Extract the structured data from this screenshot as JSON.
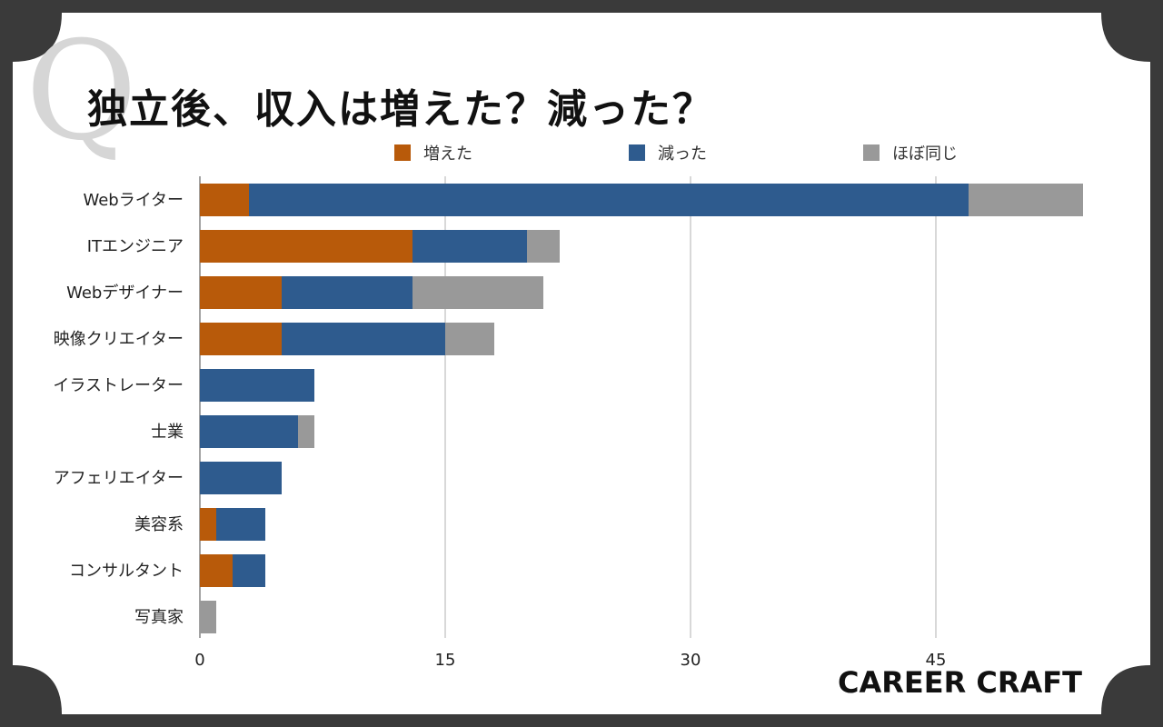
{
  "chart_data": {
    "type": "bar",
    "orientation": "horizontal",
    "stacked": true,
    "title": "独立後、収入は増えた？減った？",
    "categories": [
      "Webライター",
      "ITエンジニア",
      "Webデザイナー",
      "映像クリエイター",
      "イラストレーター",
      "士業",
      "アフェリエイター",
      "美容系",
      "コンサルタント",
      "写真家"
    ],
    "series": [
      {
        "name": "増えた",
        "color": "#b85a0a",
        "values": [
          3,
          13,
          5,
          5,
          0,
          0,
          0,
          1,
          2,
          0
        ]
      },
      {
        "name": "減った",
        "color": "#2e5b8e",
        "values": [
          44,
          7,
          8,
          10,
          7,
          6,
          5,
          3,
          2,
          0
        ]
      },
      {
        "name": "ほぼ同じ",
        "color": "#999999",
        "values": [
          7,
          2,
          8,
          3,
          0,
          1,
          0,
          0,
          0,
          1
        ]
      }
    ],
    "xlim": [
      0,
      54
    ],
    "xticks": [
      "0",
      "15",
      "30",
      "45"
    ],
    "grid": true,
    "legend_position": "top"
  },
  "brand": {
    "logo_text": "CAREER CRAFT",
    "q_letter": "Q"
  }
}
